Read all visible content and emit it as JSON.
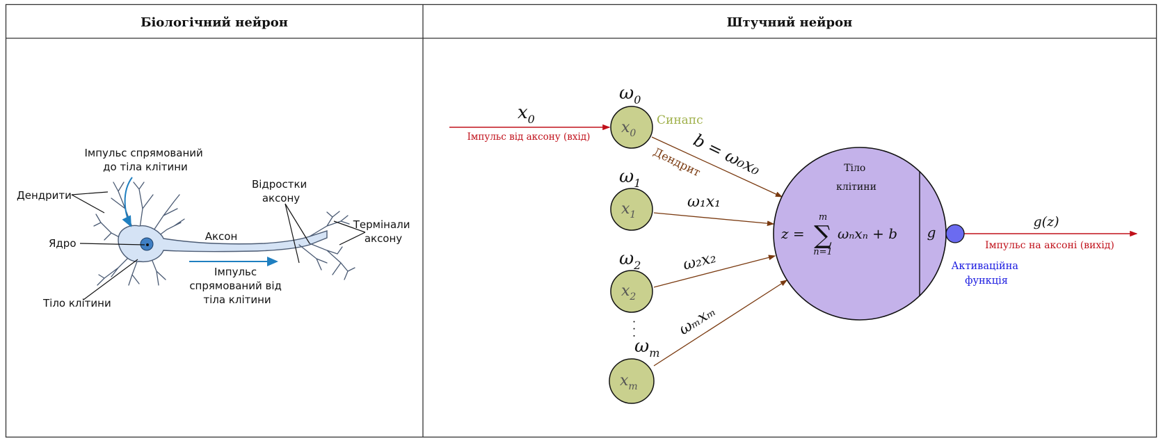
{
  "table": {
    "left_header": "Біологічний нейрон",
    "right_header": "Штучний нейрон"
  },
  "bio": {
    "impulse_to_body_line1": "Імпульс спрямований",
    "impulse_to_body_line2": "до тіла клітини",
    "dendrites": "Дендрити",
    "nucleus": "Ядро",
    "axon": "Аксон",
    "axon_branches_line1": "Відростки",
    "axon_branches_line2": "аксону",
    "terminals_line1": "Термінали",
    "terminals_line2": "аксону",
    "impulse_from_body_line1": "Імпульс",
    "impulse_from_body_line2": "спрямований від",
    "impulse_from_body_line3": "тіла клітини",
    "cell_body": "Тіло клітини",
    "colors": {
      "cell": "#d5e3f5",
      "cell_stroke": "#4a5a73",
      "nucleus": "#3f7fc4",
      "arrow": "#1f7fc0"
    }
  },
  "artificial": {
    "x0_input_label": "x",
    "x0_input_sub": "0",
    "input_caption": "Імпульс від аксону (вхід)",
    "synapse": "Синапс",
    "dendrite": "Дендрит",
    "bias_eq": "b = ω₀x₀",
    "weights": [
      {
        "w": "ω",
        "w_sub": "0",
        "x": "x",
        "x_sub": "0"
      },
      {
        "w": "ω",
        "w_sub": "1",
        "x": "x",
        "x_sub": "1",
        "edge": "ω₁x₁"
      },
      {
        "w": "ω",
        "w_sub": "2",
        "x": "x",
        "x_sub": "2",
        "edge": "ω₂x₂"
      },
      {
        "w": "ω",
        "w_sub": "m",
        "x": "x",
        "x_sub": "m",
        "edge": "ωₘxₘ"
      }
    ],
    "dots": "·  ·  ·",
    "body_line1": "Тіло",
    "body_line2": "клітини",
    "sum_z": "z =",
    "sum_upper": "m",
    "sum_sigma": "∑",
    "sum_lower": "n=1",
    "sum_terms": "ωₙxₙ + b",
    "g": "g",
    "gz": "g(z)",
    "output_caption": "Імпульс на аксоні (вихід)",
    "activation_line1": "Активаційна",
    "activation_line2": "функція",
    "colors": {
      "input_node": "#c9d08e",
      "cell_body": "#c4b2ea",
      "activation": "#6b6bf0",
      "red": "#c0101a",
      "brown": "#7a3a10",
      "green_text": "#9fb04a",
      "blue_text": "#1a1ae0"
    }
  }
}
